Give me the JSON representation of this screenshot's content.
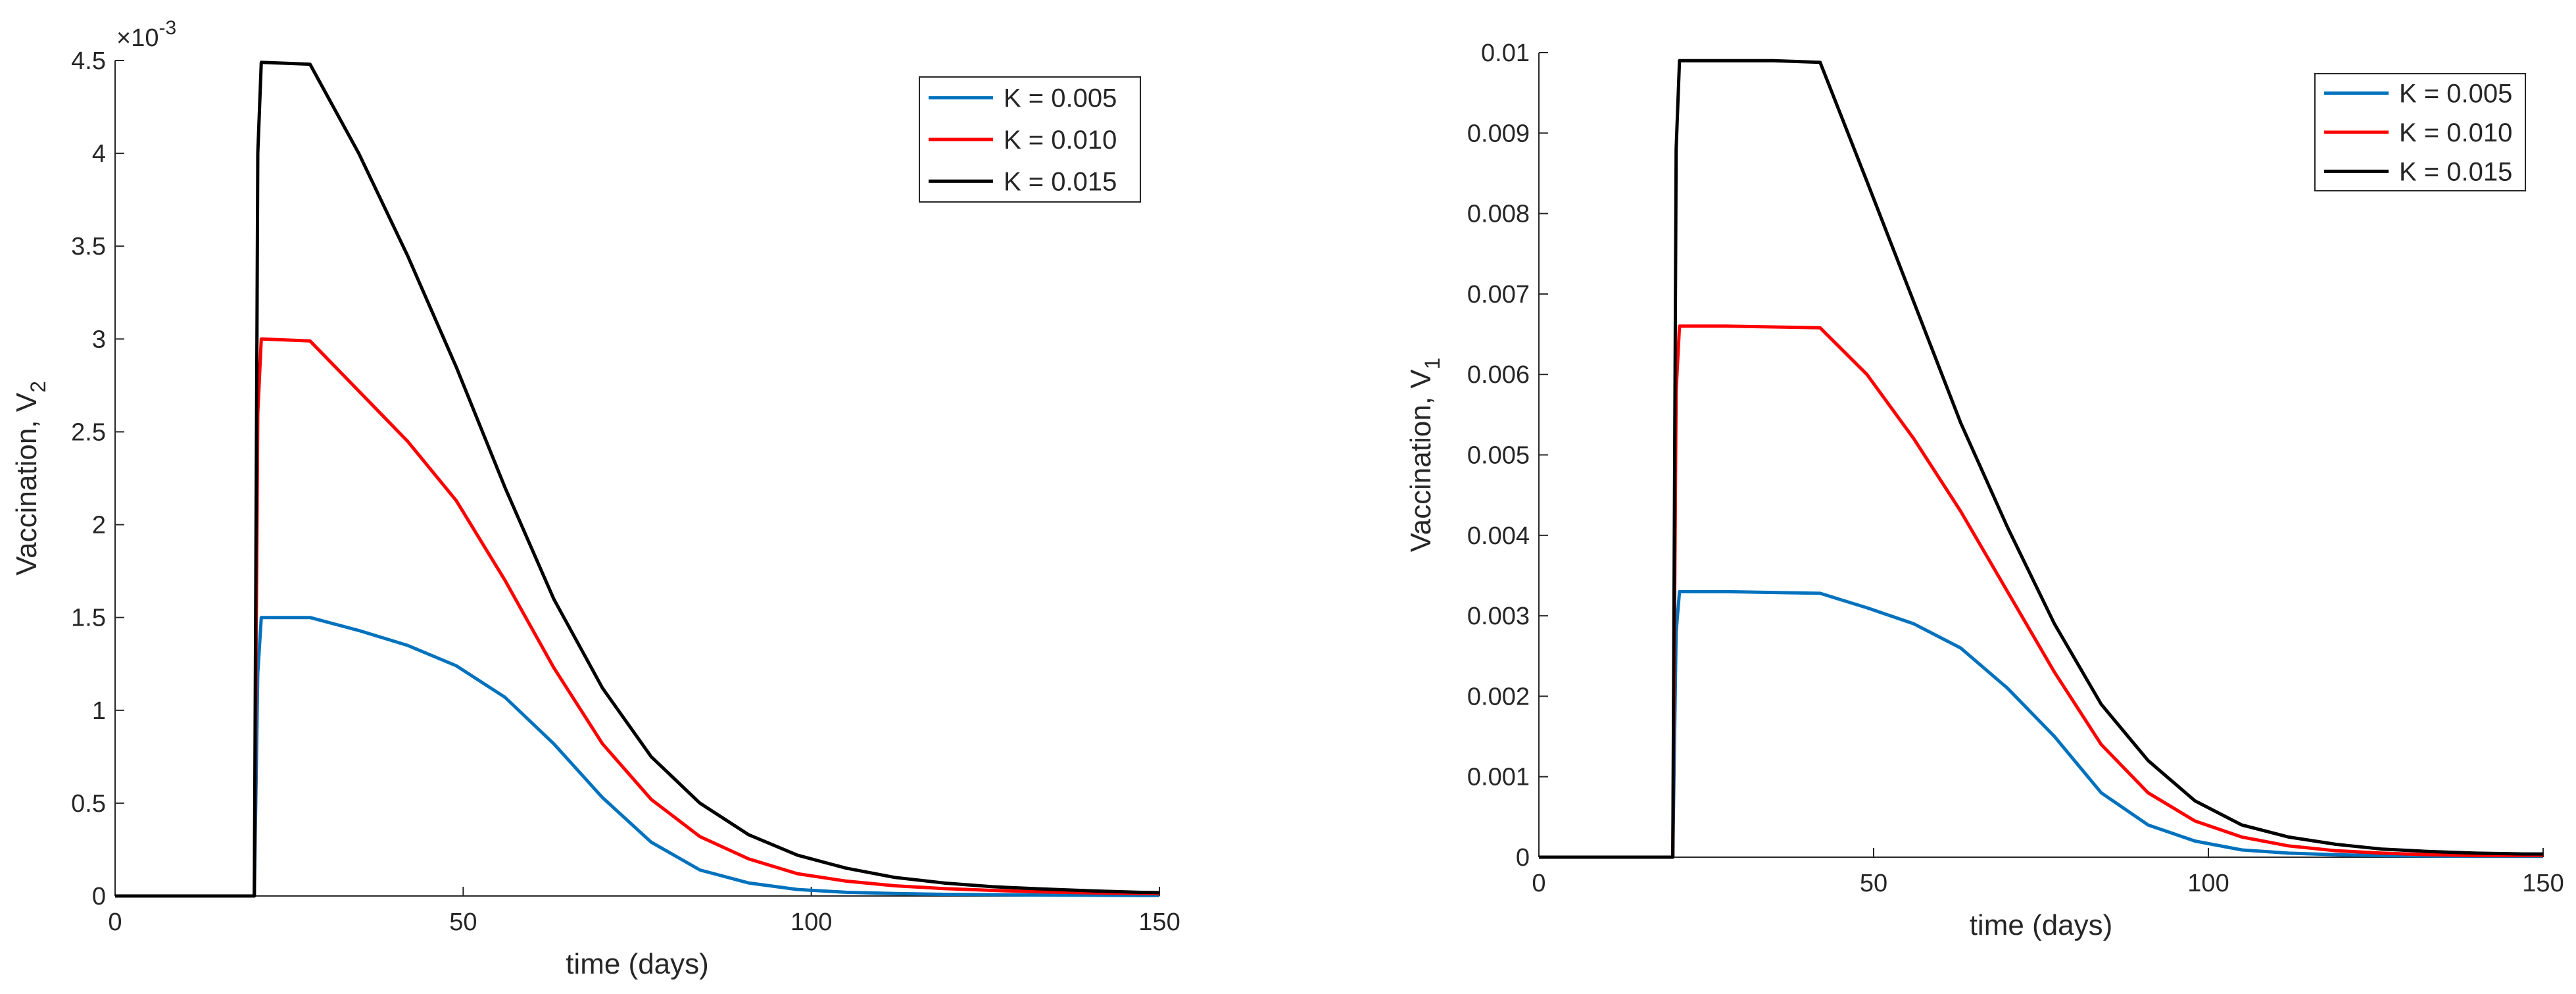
{
  "chart_data": [
    {
      "type": "line",
      "xlabel": "time (days)",
      "ylabel": "Vaccination, V",
      "ylabel_subscript": "2",
      "xlim": [
        0,
        150
      ],
      "ylim": [
        0,
        4.5
      ],
      "x_ticks": [
        "0",
        "50",
        "100",
        "150"
      ],
      "y_ticks": [
        "0",
        "0.5",
        "1",
        "1.5",
        "2",
        "2.5",
        "3",
        "3.5",
        "4",
        "4.5"
      ],
      "exponent_label": "×10",
      "exponent_power": "-3",
      "legend_position": "top-right",
      "x": [
        0,
        20,
        20.5,
        21,
        28,
        35,
        42,
        49,
        56,
        63,
        70,
        77,
        84,
        91,
        98,
        105,
        112,
        119,
        126,
        133,
        140,
        147,
        150
      ],
      "series": [
        {
          "name": "K = 0.005",
          "color": "#0072BD",
          "values": [
            0,
            0,
            1.2,
            1.5,
            1.5,
            1.43,
            1.35,
            1.24,
            1.07,
            0.82,
            0.53,
            0.29,
            0.14,
            0.07,
            0.035,
            0.02,
            0.013,
            0.009,
            0.007,
            0.005,
            0.004,
            0.003,
            0.003
          ]
        },
        {
          "name": "K = 0.010",
          "color": "#FF0000",
          "values": [
            0,
            0,
            2.6,
            3.0,
            2.99,
            2.72,
            2.45,
            2.13,
            1.7,
            1.23,
            0.82,
            0.52,
            0.32,
            0.2,
            0.12,
            0.08,
            0.055,
            0.04,
            0.03,
            0.022,
            0.017,
            0.013,
            0.012
          ]
        },
        {
          "name": "K = 0.015",
          "color": "#000000",
          "values": [
            0,
            0,
            4.0,
            4.49,
            4.48,
            4.0,
            3.45,
            2.85,
            2.2,
            1.6,
            1.12,
            0.75,
            0.5,
            0.33,
            0.22,
            0.15,
            0.1,
            0.07,
            0.05,
            0.038,
            0.028,
            0.02,
            0.018
          ]
        }
      ]
    },
    {
      "type": "line",
      "xlabel": "time (days)",
      "ylabel": "Vaccination, V",
      "ylabel_subscript": "1",
      "xlim": [
        0,
        150
      ],
      "ylim": [
        0,
        0.01
      ],
      "x_ticks": [
        "0",
        "50",
        "100",
        "150"
      ],
      "y_ticks": [
        "0",
        "0.001",
        "0.002",
        "0.003",
        "0.004",
        "0.005",
        "0.006",
        "0.007",
        "0.008",
        "0.009",
        "0.01"
      ],
      "legend_position": "top-right",
      "x": [
        0,
        20,
        20.5,
        21,
        28,
        35,
        42,
        49,
        56,
        63,
        70,
        77,
        84,
        91,
        98,
        105,
        112,
        119,
        126,
        133,
        140,
        147,
        150
      ],
      "series": [
        {
          "name": "K = 0.005",
          "color": "#0072BD",
          "values": [
            0,
            0,
            0.0028,
            0.0033,
            0.0033,
            0.00329,
            0.00328,
            0.0031,
            0.0029,
            0.0026,
            0.0021,
            0.0015,
            0.0008,
            0.0004,
            0.0002,
            9e-05,
            5e-05,
            3e-05,
            2e-05,
            1.5e-05,
            1e-05,
            1e-05,
            1e-05
          ]
        },
        {
          "name": "K = 0.010",
          "color": "#FF0000",
          "values": [
            0,
            0,
            0.0058,
            0.0066,
            0.0066,
            0.00659,
            0.00658,
            0.006,
            0.0052,
            0.0043,
            0.0033,
            0.0023,
            0.0014,
            0.0008,
            0.00045,
            0.00025,
            0.00014,
            8e-05,
            5e-05,
            3e-05,
            2e-05,
            2e-05,
            2e-05
          ]
        },
        {
          "name": "K = 0.015",
          "color": "#000000",
          "values": [
            0,
            0,
            0.0088,
            0.0099,
            0.0099,
            0.0099,
            0.00988,
            0.0084,
            0.0069,
            0.0054,
            0.0041,
            0.0029,
            0.0019,
            0.0012,
            0.0007,
            0.0004,
            0.00025,
            0.00016,
            0.0001,
            7e-05,
            5e-05,
            4e-05,
            4e-05
          ]
        }
      ]
    }
  ]
}
